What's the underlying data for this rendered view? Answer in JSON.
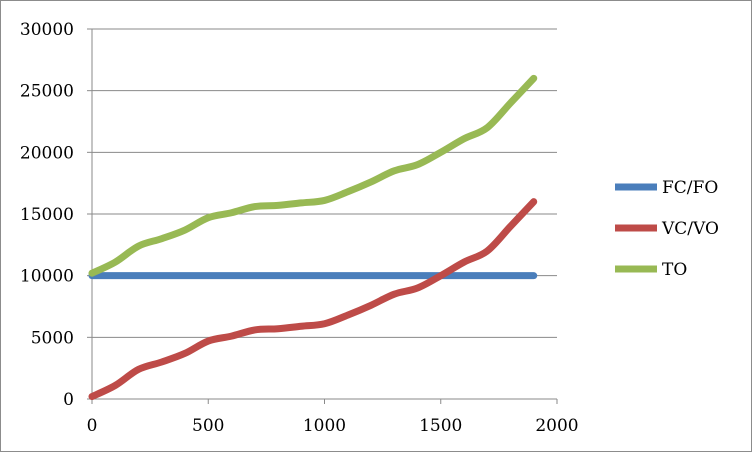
{
  "chart_data": {
    "type": "line",
    "title": "",
    "xlabel": "",
    "ylabel": "",
    "xlim": [
      0,
      2000
    ],
    "ylim": [
      0,
      30000
    ],
    "x_ticks": [
      "0",
      "500",
      "1000",
      "1500",
      "2000"
    ],
    "y_ticks": [
      "0",
      "5000",
      "10000",
      "15000",
      "20000",
      "25000",
      "30000"
    ],
    "grid": "horizontal",
    "legend_position": "right",
    "series": [
      {
        "name": "FC/FO",
        "color": "#4a7ebb",
        "x": [
          0,
          100,
          200,
          300,
          400,
          500,
          600,
          700,
          800,
          900,
          1000,
          1100,
          1200,
          1300,
          1400,
          1500,
          1600,
          1700,
          1800,
          1900
        ],
        "y": [
          10000,
          10000,
          10000,
          10000,
          10000,
          10000,
          10000,
          10000,
          10000,
          10000,
          10000,
          10000,
          10000,
          10000,
          10000,
          10000,
          10000,
          10000,
          10000,
          10000
        ]
      },
      {
        "name": "VC/VO",
        "color": "#be4b48",
        "x": [
          0,
          100,
          200,
          300,
          400,
          500,
          600,
          700,
          800,
          900,
          1000,
          1100,
          1200,
          1300,
          1400,
          1500,
          1600,
          1700,
          1800,
          1900
        ],
        "y": [
          200,
          1100,
          2400,
          3000,
          3700,
          4700,
          5100,
          5600,
          5700,
          5900,
          6100,
          6800,
          7600,
          8500,
          9000,
          10000,
          11100,
          12000,
          14000,
          16000
        ]
      },
      {
        "name": "TO",
        "color": "#98b954",
        "x": [
          0,
          100,
          200,
          300,
          400,
          500,
          600,
          700,
          800,
          900,
          1000,
          1100,
          1200,
          1300,
          1400,
          1500,
          1600,
          1700,
          1800,
          1900
        ],
        "y": [
          10200,
          11100,
          12400,
          13000,
          13700,
          14700,
          15100,
          15600,
          15700,
          15900,
          16100,
          16800,
          17600,
          18500,
          19000,
          20000,
          21100,
          22000,
          24000,
          26000
        ]
      }
    ]
  }
}
